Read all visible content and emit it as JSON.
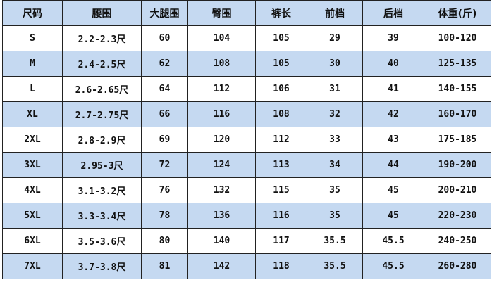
{
  "colors": {
    "header_bg": "#c5d9f1",
    "alt_row_bg": "#c5d9f1",
    "border": "#222222"
  },
  "headers": [
    "尺码",
    "腰围",
    "大腿围",
    "臀围",
    "裤长",
    "前档",
    "后档",
    "体重(斤)"
  ],
  "rows": [
    [
      "S",
      "2.2-2.3尺",
      "60",
      "104",
      "105",
      "29",
      "39",
      "100-120"
    ],
    [
      "M",
      "2.4-2.5尺",
      "62",
      "108",
      "105",
      "30",
      "40",
      "125-135"
    ],
    [
      "L",
      "2.6-2.65尺",
      "64",
      "112",
      "106",
      "31",
      "41",
      "140-155"
    ],
    [
      "XL",
      "2.7-2.75尺",
      "66",
      "116",
      "108",
      "32",
      "42",
      "160-170"
    ],
    [
      "2XL",
      "2.8-2.9尺",
      "69",
      "120",
      "112",
      "33",
      "43",
      "175-185"
    ],
    [
      "3XL",
      "2.95-3尺",
      "72",
      "124",
      "113",
      "34",
      "44",
      "190-200"
    ],
    [
      "4XL",
      "3.1-3.2尺",
      "76",
      "132",
      "115",
      "35",
      "45",
      "200-210"
    ],
    [
      "5XL",
      "3.3-3.4尺",
      "78",
      "136",
      "116",
      "35",
      "45",
      "220-230"
    ],
    [
      "6XL",
      "3.5-3.6尺",
      "80",
      "140",
      "117",
      "35.5",
      "45.5",
      "240-250"
    ],
    [
      "7XL",
      "3.7-3.8尺",
      "81",
      "142",
      "118",
      "35.5",
      "45.5",
      "260-280"
    ]
  ]
}
